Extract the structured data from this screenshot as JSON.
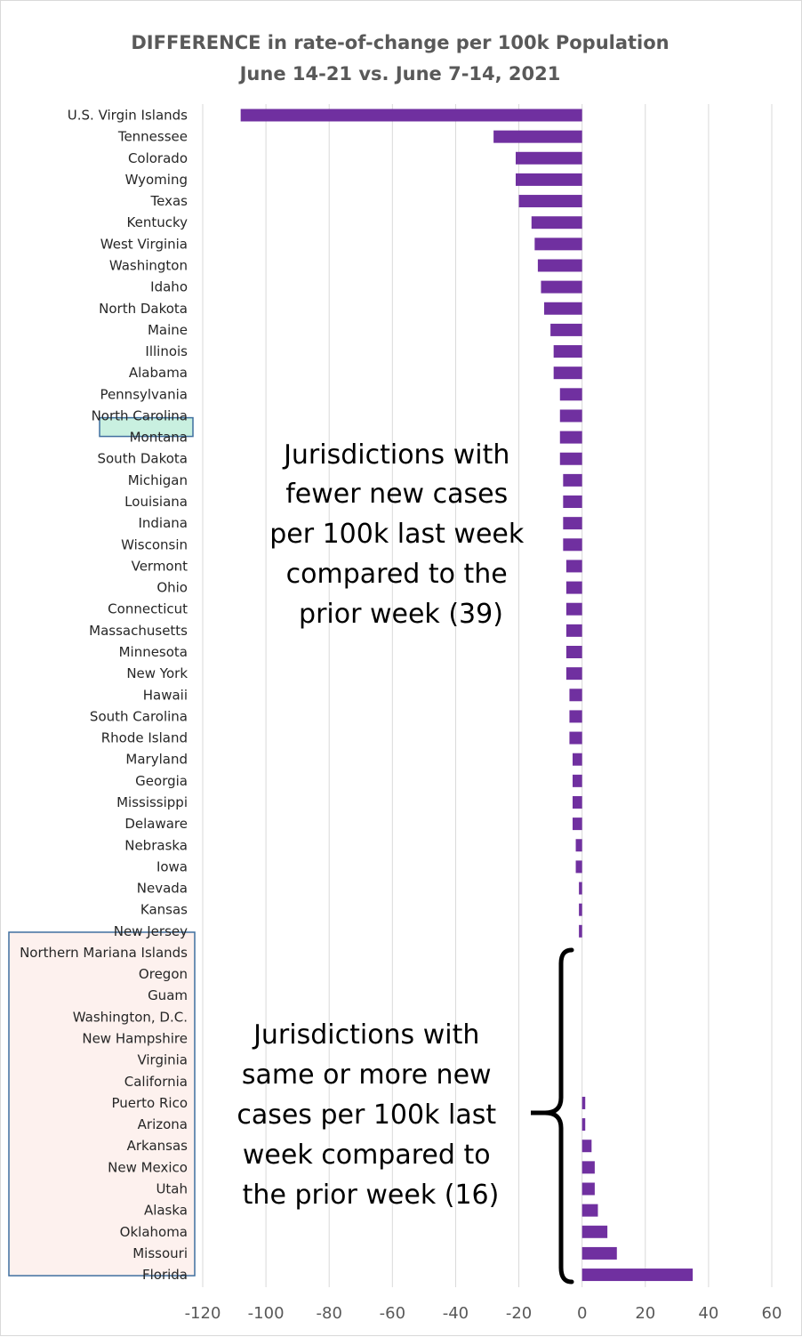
{
  "chart_data": {
    "type": "bar",
    "orientation": "horizontal",
    "title": "DIFFERENCE in rate-of-change per 100k Population",
    "subtitle": "June 14-21 vs. June 7-14, 2021",
    "categories": [
      "U.S. Virgin Islands",
      "Tennessee",
      "Colorado",
      "Wyoming",
      "Texas",
      "Kentucky",
      "West Virginia",
      "Washington",
      "Idaho",
      "North Dakota",
      "Maine",
      "Illinois",
      "Alabama",
      "Pennsylvania",
      "North Carolina",
      "Montana",
      "South Dakota",
      "Michigan",
      "Louisiana",
      "Indiana",
      "Wisconsin",
      "Vermont",
      "Ohio",
      "Connecticut",
      "Massachusetts",
      "Minnesota",
      "New York",
      "Hawaii",
      "South Carolina",
      "Rhode Island",
      "Maryland",
      "Georgia",
      "Mississippi",
      "Delaware",
      "Nebraska",
      "Iowa",
      "Nevada",
      "Kansas",
      "New Jersey",
      "Northern Mariana Islands",
      "Oregon",
      "Guam",
      "Washington, D.C.",
      "New Hampshire",
      "Virginia",
      "California",
      "Puerto Rico",
      "Arizona",
      "Arkansas",
      "New Mexico",
      "Utah",
      "Alaska",
      "Oklahoma",
      "Missouri",
      "Florida"
    ],
    "values": [
      -108,
      -28,
      -21,
      -21,
      -20,
      -16,
      -15,
      -14,
      -13,
      -12,
      -10,
      -9,
      -9,
      -7,
      -7,
      -7,
      -7,
      -6,
      -6,
      -6,
      -6,
      -5,
      -5,
      -5,
      -5,
      -5,
      -5,
      -4,
      -4,
      -4,
      -3,
      -3,
      -3,
      -3,
      -2,
      -2,
      -1,
      -1,
      -1,
      0,
      0,
      0,
      0,
      0,
      0,
      0,
      1,
      1,
      3,
      4,
      4,
      5,
      8,
      11,
      35
    ],
    "xlim": [
      -120,
      60
    ],
    "xticks": [
      -120,
      -100,
      -80,
      -60,
      -40,
      -20,
      0,
      20,
      40,
      60
    ],
    "grid": true,
    "bar_color": "#7030a0",
    "highlighted_category": "Montana",
    "highlight_color": "#c9f0e0",
    "increase_group_fill": "#fdf1ee",
    "box_border_color": "#3f6f9f",
    "annotations": [
      {
        "lines": [
          "Jurisdictions with",
          "fewer new cases",
          "per 100k last week",
          "compared to the",
          "prior week (39)"
        ]
      },
      {
        "lines": [
          "Jurisdictions with",
          "same or more new",
          "cases per 100k last",
          "week compared to",
          "the prior week (16)"
        ]
      }
    ]
  }
}
